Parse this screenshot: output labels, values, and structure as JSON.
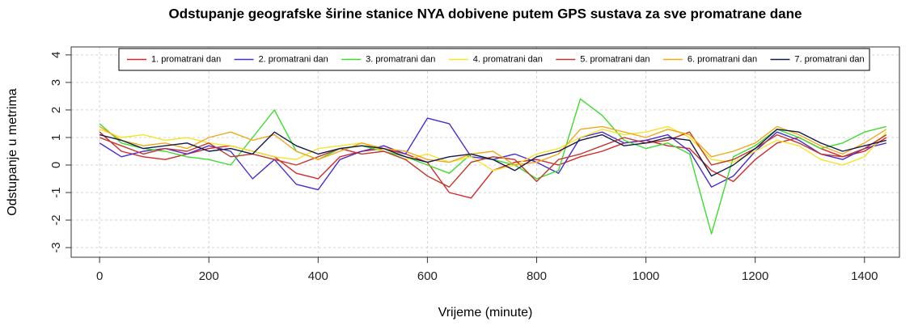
{
  "chart_data": {
    "type": "line",
    "title": "Odstupanje geografske širine stanice NYA dobivene putem GPS sustava za sve promatrane dane",
    "xlabel": "Vrijeme (minute)",
    "ylabel": "Odstupanje u metrima",
    "x": [
      0,
      40,
      80,
      120,
      160,
      200,
      240,
      280,
      320,
      360,
      400,
      440,
      480,
      520,
      560,
      600,
      640,
      680,
      720,
      760,
      800,
      840,
      880,
      920,
      960,
      1000,
      1040,
      1080,
      1120,
      1160,
      1200,
      1240,
      1280,
      1320,
      1360,
      1400,
      1440
    ],
    "series": [
      {
        "name": "1. promatrani dan",
        "color": "#d62728",
        "values": [
          1.2,
          0.5,
          0.3,
          0.2,
          0.4,
          0.6,
          0.7,
          0.5,
          0.3,
          -0.3,
          -0.5,
          0.3,
          0.5,
          0.6,
          0.4,
          0.1,
          -1.0,
          -1.2,
          -0.2,
          0.1,
          0.2,
          0.0,
          0.3,
          0.5,
          0.8,
          0.9,
          0.7,
          0.6,
          -0.2,
          -0.6,
          0.2,
          0.8,
          1.0,
          0.6,
          0.3,
          0.5,
          1.0
        ]
      },
      {
        "name": "2. promatrani dan",
        "color": "#4b2bd0",
        "values": [
          0.8,
          0.3,
          0.5,
          0.6,
          0.4,
          0.7,
          0.5,
          -0.5,
          0.2,
          -0.7,
          -0.9,
          0.2,
          0.5,
          0.7,
          0.4,
          1.7,
          1.5,
          0.3,
          0.2,
          0.4,
          0.1,
          -0.3,
          1.0,
          1.2,
          0.8,
          0.9,
          1.1,
          0.5,
          -0.8,
          -0.4,
          0.5,
          1.2,
          0.9,
          0.4,
          0.2,
          0.6,
          0.8
        ]
      },
      {
        "name": "3. promatrani dan",
        "color": "#3ddc2e",
        "values": [
          1.5,
          0.8,
          0.6,
          0.5,
          0.3,
          0.2,
          0.0,
          1.0,
          2.0,
          0.5,
          0.2,
          0.6,
          0.7,
          0.5,
          0.3,
          0.0,
          -0.3,
          0.4,
          0.2,
          0.0,
          -0.5,
          -0.2,
          2.4,
          1.8,
          0.9,
          0.6,
          0.8,
          0.4,
          -2.5,
          0.3,
          0.7,
          1.3,
          1.0,
          0.6,
          0.8,
          1.2,
          1.4
        ]
      },
      {
        "name": "4. promatrani dan",
        "color": "#f5e42a",
        "values": [
          1.3,
          1.0,
          1.1,
          0.9,
          1.0,
          0.8,
          0.7,
          0.5,
          0.3,
          0.2,
          0.6,
          0.7,
          0.8,
          0.5,
          0.2,
          0.4,
          0.1,
          0.3,
          -0.2,
          0.0,
          0.4,
          0.6,
          1.0,
          1.3,
          1.1,
          1.2,
          1.4,
          1.0,
          0.2,
          0.1,
          0.5,
          0.9,
          0.7,
          0.2,
          0.0,
          0.3,
          1.2
        ]
      },
      {
        "name": "5. promatrani dan",
        "color": "#c0392b",
        "values": [
          1.0,
          0.7,
          0.4,
          0.6,
          0.5,
          0.8,
          0.3,
          0.4,
          0.2,
          0.0,
          0.3,
          0.6,
          0.4,
          0.5,
          0.2,
          -0.4,
          -0.8,
          0.1,
          0.3,
          0.2,
          -0.6,
          0.2,
          0.4,
          0.7,
          1.0,
          0.8,
          0.9,
          1.2,
          0.0,
          0.2,
          0.6,
          1.1,
          0.8,
          0.4,
          0.3,
          0.6,
          1.1
        ]
      },
      {
        "name": "6. promatrani dan",
        "color": "#f0a81c",
        "values": [
          1.4,
          0.9,
          0.7,
          0.8,
          0.6,
          1.0,
          1.2,
          0.9,
          1.1,
          0.5,
          0.2,
          0.5,
          0.8,
          0.6,
          0.5,
          0.2,
          0.1,
          0.4,
          0.5,
          0.0,
          0.1,
          0.4,
          1.3,
          1.4,
          1.2,
          1.0,
          1.3,
          1.1,
          0.3,
          0.5,
          0.8,
          1.4,
          1.1,
          0.7,
          0.4,
          0.8,
          1.3
        ]
      },
      {
        "name": "7. promatrani dan",
        "color": "#141a4a",
        "values": [
          1.1,
          0.9,
          0.6,
          0.7,
          0.8,
          0.5,
          0.6,
          0.4,
          1.2,
          0.7,
          0.4,
          0.6,
          0.7,
          0.6,
          0.3,
          0.1,
          0.3,
          0.4,
          0.2,
          -0.2,
          0.3,
          0.5,
          0.9,
          1.1,
          0.7,
          0.8,
          1.0,
          0.9,
          -0.4,
          0.0,
          0.6,
          1.3,
          1.2,
          0.8,
          0.5,
          0.7,
          0.9
        ]
      }
    ],
    "xlim": [
      -52,
      1464
    ],
    "ylim": [
      -3.35,
      4.29
    ],
    "xticks": [
      0,
      200,
      400,
      600,
      800,
      1000,
      1200,
      1400
    ],
    "yticks": [
      -3,
      -2,
      -1,
      0,
      1,
      2,
      3,
      4
    ],
    "grid": true,
    "legend": "top"
  }
}
